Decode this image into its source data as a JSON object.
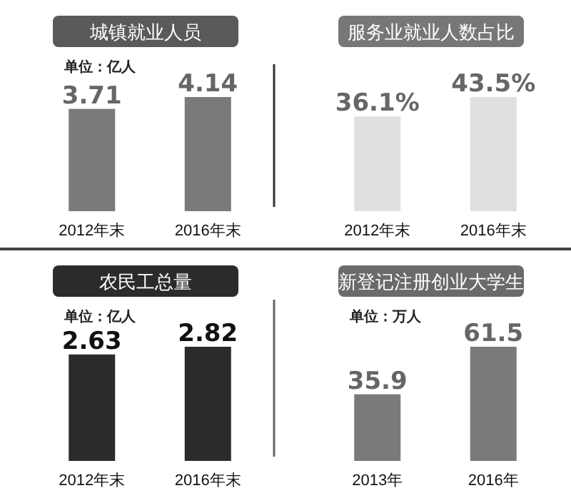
{
  "chart_data": [
    {
      "type": "bar",
      "title": "城镇就业人员",
      "subtitle": "单位：亿人",
      "categories": [
        "2012年末",
        "2016年末"
      ],
      "values": [
        3.71,
        4.14
      ],
      "color": "#7a7a7a",
      "data_labels": true
    },
    {
      "type": "bar",
      "title": "服务业就业人数占比",
      "categories": [
        "2012年末",
        "2016年末"
      ],
      "values": [
        36.1,
        43.5
      ],
      "value_labels": [
        "36.1%",
        "43.5%"
      ],
      "color": "#e0e0e0"
    },
    {
      "type": "bar",
      "title": "农民工总量",
      "subtitle": "单位：亿人",
      "categories": [
        "2012年末",
        "2016年末"
      ],
      "values": [
        2.63,
        2.82
      ],
      "color": "#2b2b2b",
      "data_labels": true
    },
    {
      "type": "bar",
      "title": "新登记注册创业大学生",
      "subtitle": "单位：万人",
      "categories": [
        "2013年",
        "2016年"
      ],
      "values": [
        35.9,
        61.5
      ],
      "color": "#7a7a7a",
      "data_labels": true
    }
  ]
}
